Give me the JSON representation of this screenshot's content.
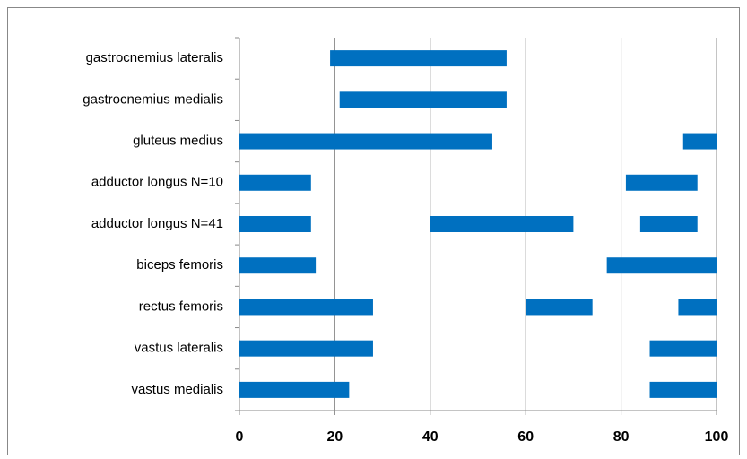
{
  "chart_data": {
    "type": "floating_bar",
    "categories": [
      "gastrocnemius lateralis",
      "gastrocnemius medialis",
      "gluteus medius",
      "adductor longus N=10",
      "adductor longus N=41",
      "biceps femoris",
      "rectus femoris",
      "vastus lateralis",
      "vastus medialis"
    ],
    "ranges": [
      [
        [
          19,
          56
        ]
      ],
      [
        [
          21,
          56
        ]
      ],
      [
        [
          0,
          53
        ],
        [
          93,
          100
        ]
      ],
      [
        [
          0,
          15
        ],
        [
          81,
          96
        ]
      ],
      [
        [
          0,
          15
        ],
        [
          40,
          70
        ],
        [
          84,
          96
        ]
      ],
      [
        [
          0,
          16
        ],
        [
          77,
          100
        ]
      ],
      [
        [
          0,
          28
        ],
        [
          60,
          74
        ],
        [
          92,
          100
        ]
      ],
      [
        [
          0,
          28
        ],
        [
          86,
          100
        ]
      ],
      [
        [
          0,
          23
        ],
        [
          86,
          100
        ]
      ]
    ],
    "color": "#0070c0",
    "xlim": [
      0,
      100
    ],
    "xticks": [
      0,
      20,
      40,
      60,
      80,
      100
    ],
    "grid": true
  }
}
